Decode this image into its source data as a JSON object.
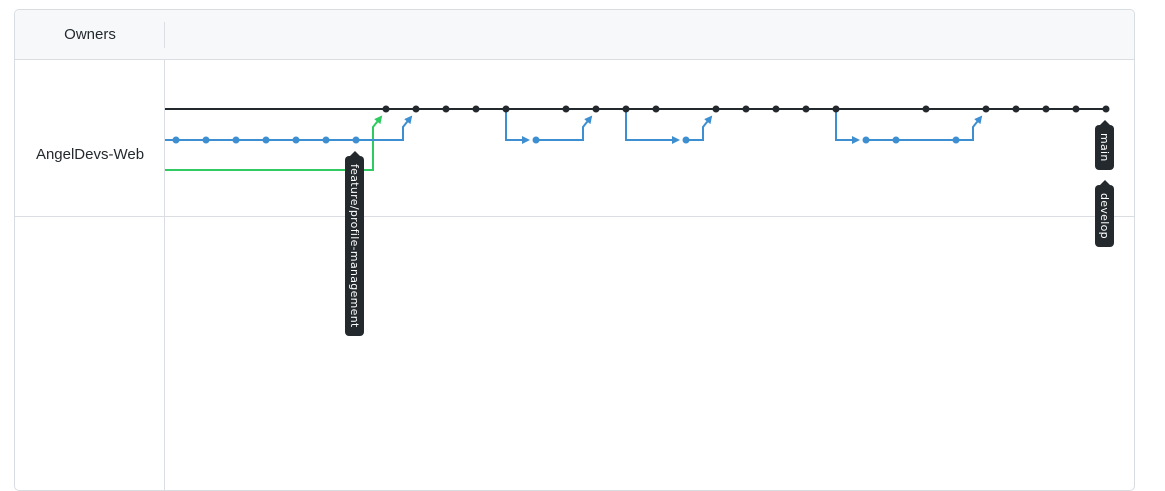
{
  "header": {
    "owners_label": "Owners"
  },
  "repositories": [
    {
      "owner": "AngelDevs-Web"
    }
  ],
  "branch_labels": {
    "feature": "feature/profile-management",
    "main": "main",
    "develop": "develop"
  },
  "colors": {
    "main_line": "#24292e",
    "develop_line": "#3d8fd2",
    "feature_line": "#2fcb62",
    "border": "#dadee3",
    "header_bg": "#f6f8fa"
  }
}
